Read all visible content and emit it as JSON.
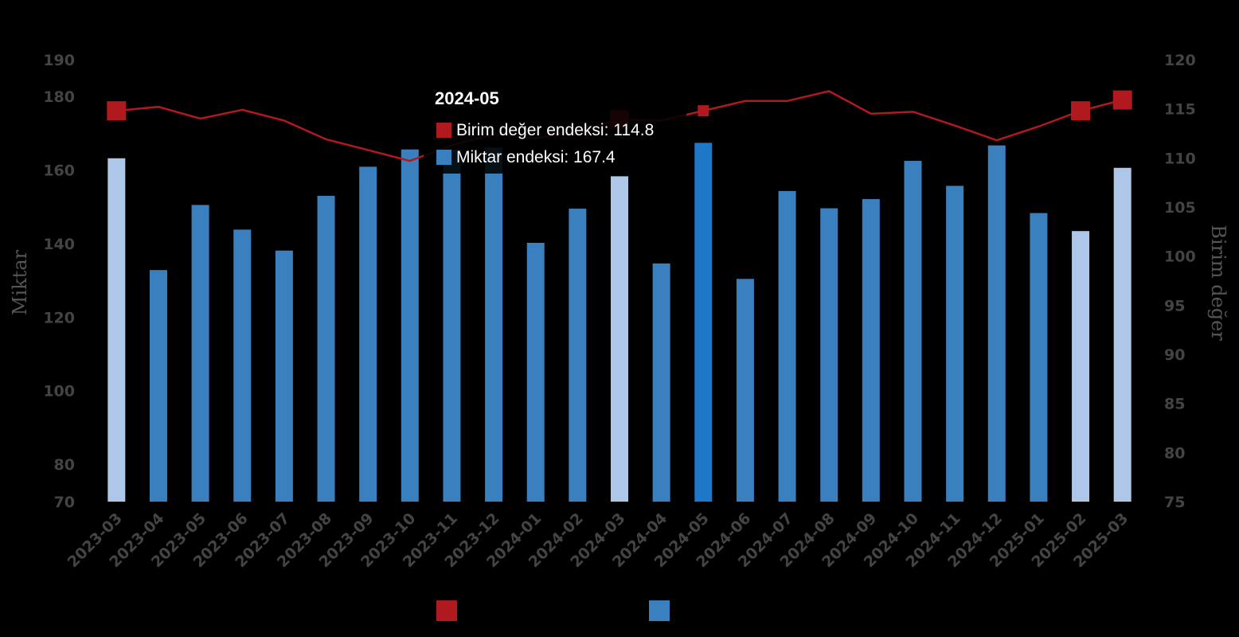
{
  "chart_data": {
    "type": "bar",
    "categories": [
      "2023-03",
      "2023-04",
      "2023-05",
      "2023-06",
      "2023-07",
      "2023-08",
      "2023-09",
      "2023-10",
      "2023-11",
      "2023-12",
      "2024-01",
      "2024-02",
      "2024-03",
      "2024-04",
      "2024-05",
      "2024-06",
      "2024-07",
      "2024-08",
      "2024-09",
      "2024-10",
      "2024-11",
      "2024-12",
      "2025-01",
      "2025-02",
      "2025-03"
    ],
    "series": [
      {
        "name": "Miktar endeksi",
        "type": "bar",
        "axis": "left",
        "color": "#3a7fbe",
        "values": [
          163.2,
          132.8,
          150.5,
          143.8,
          138.1,
          153.0,
          160.9,
          165.6,
          165.6,
          166.1,
          140.2,
          149.5,
          158.3,
          134.6,
          167.4,
          130.4,
          154.3,
          149.6,
          152.1,
          162.5,
          155.7,
          166.7,
          148.3,
          143.4,
          160.6
        ]
      },
      {
        "name": "Birim değer endeksi",
        "type": "line",
        "axis": "right",
        "color": "#b0191e",
        "values": [
          114.8,
          115.2,
          114.0,
          114.9,
          113.8,
          111.9,
          110.8,
          109.7,
          111.3,
          112.4,
          112.0,
          112.7,
          113.9,
          113.8,
          114.8,
          115.8,
          115.8,
          116.8,
          114.5,
          114.7,
          113.3,
          111.8,
          113.2,
          114.8,
          115.9
        ]
      }
    ],
    "highlight_categories": [
      "2023-03",
      "2024-03",
      "2025-02",
      "2025-03"
    ],
    "highlight_bar_color": "#aec7e8",
    "hover_bar_color": "#1f77c8",
    "hover_index": 14,
    "ylabel": "Miktar",
    "y2label": "Birim değer",
    "ylim": [
      70,
      190
    ],
    "y2lim": [
      75,
      120
    ],
    "y_ticks": [
      70,
      80,
      100,
      120,
      140,
      160,
      180,
      190
    ],
    "y2_ticks": [
      75,
      80,
      85,
      90,
      95,
      100,
      105,
      110,
      115,
      120
    ],
    "legend": {
      "position": "bottom-center",
      "items": [
        {
          "color": "#b0191e"
        },
        {
          "color": "#3a7fbe"
        }
      ]
    },
    "grid": false
  },
  "tooltip": {
    "title": "2024-05",
    "rows": [
      {
        "label": "Birim değer endeksi: 114.8",
        "color": "#b0191e"
      },
      {
        "label": "Miktar endeksi: 167.4",
        "color": "#3a7fbe"
      }
    ]
  }
}
